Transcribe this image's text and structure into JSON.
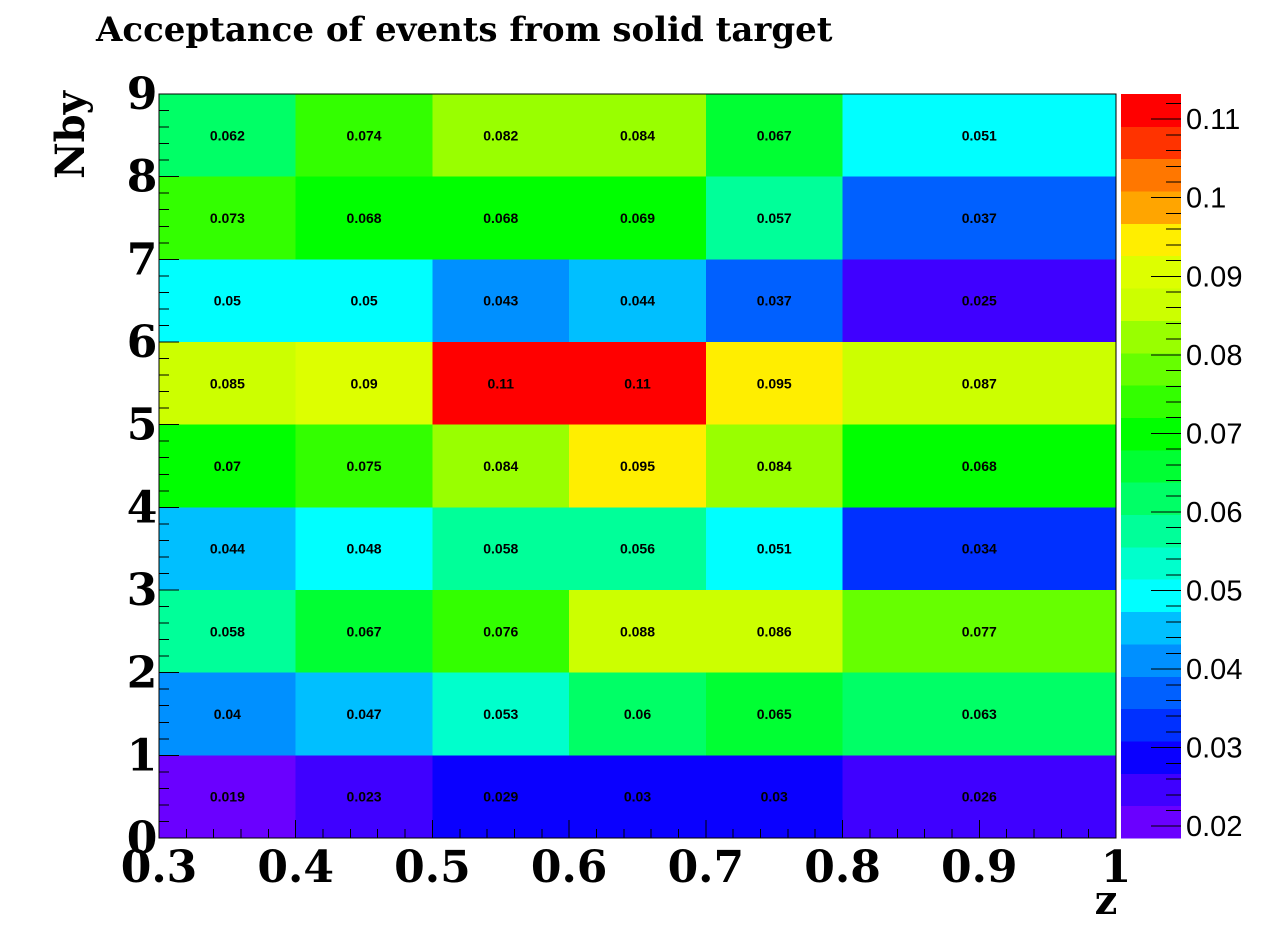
{
  "chart_data": {
    "type": "heatmap",
    "title": "Acceptance of events from solid target",
    "xlabel": "z",
    "ylabel": "Nby",
    "xlim": [
      0.3,
      1.0
    ],
    "ylim": [
      0,
      9
    ],
    "x_edges": [
      0.3,
      0.4,
      0.5,
      0.6,
      0.7,
      0.8,
      1.0
    ],
    "y_edges": [
      0,
      1,
      2,
      3,
      4,
      5,
      6,
      7,
      8,
      9
    ],
    "x_tick_labels": [
      "0.3",
      "0.4",
      "0.5",
      "0.6",
      "0.7",
      "0.8",
      "0.9",
      "1"
    ],
    "y_tick_labels": [
      "0",
      "1",
      "2",
      "3",
      "4",
      "5",
      "6",
      "7",
      "8",
      "9"
    ],
    "values": [
      [
        "0.019",
        "0.023",
        "0.029",
        "0.03",
        "0.03",
        "0.026"
      ],
      [
        "0.04",
        "0.047",
        "0.053",
        "0.06",
        "0.065",
        "0.063"
      ],
      [
        "0.058",
        "0.067",
        "0.076",
        "0.088",
        "0.086",
        "0.077"
      ],
      [
        "0.044",
        "0.048",
        "0.058",
        "0.056",
        "0.051",
        "0.034"
      ],
      [
        "0.07",
        "0.075",
        "0.084",
        "0.095",
        "0.084",
        "0.068"
      ],
      [
        "0.085",
        "0.09",
        "0.11",
        "0.11",
        "0.095",
        "0.087"
      ],
      [
        "0.05",
        "0.05",
        "0.043",
        "0.044",
        "0.037",
        "0.025"
      ],
      [
        "0.073",
        "0.068",
        "0.068",
        "0.069",
        "0.057",
        "0.037"
      ],
      [
        "0.062",
        "0.074",
        "0.082",
        "0.084",
        "0.067",
        "0.051"
      ]
    ],
    "colorbar": {
      "min": 0.0185,
      "max": 0.1132,
      "tick_labels": [
        "0.02",
        "0.03",
        "0.04",
        "0.05",
        "0.06",
        "0.07",
        "0.08",
        "0.09",
        "0.1",
        "0.11"
      ],
      "colors": [
        "#6a00ff",
        "#3f00ff",
        "#0a00ff",
        "#0030ff",
        "#0060ff",
        "#0090ff",
        "#00bfff",
        "#00ffff",
        "#00ffcc",
        "#00ff99",
        "#00ff66",
        "#00ff33",
        "#00ff00",
        "#33ff00",
        "#66ff00",
        "#99ff00",
        "#ccff00",
        "#ddff00",
        "#ffee00",
        "#ffa500",
        "#ff7700",
        "#ff3300",
        "#ff0000"
      ]
    }
  }
}
